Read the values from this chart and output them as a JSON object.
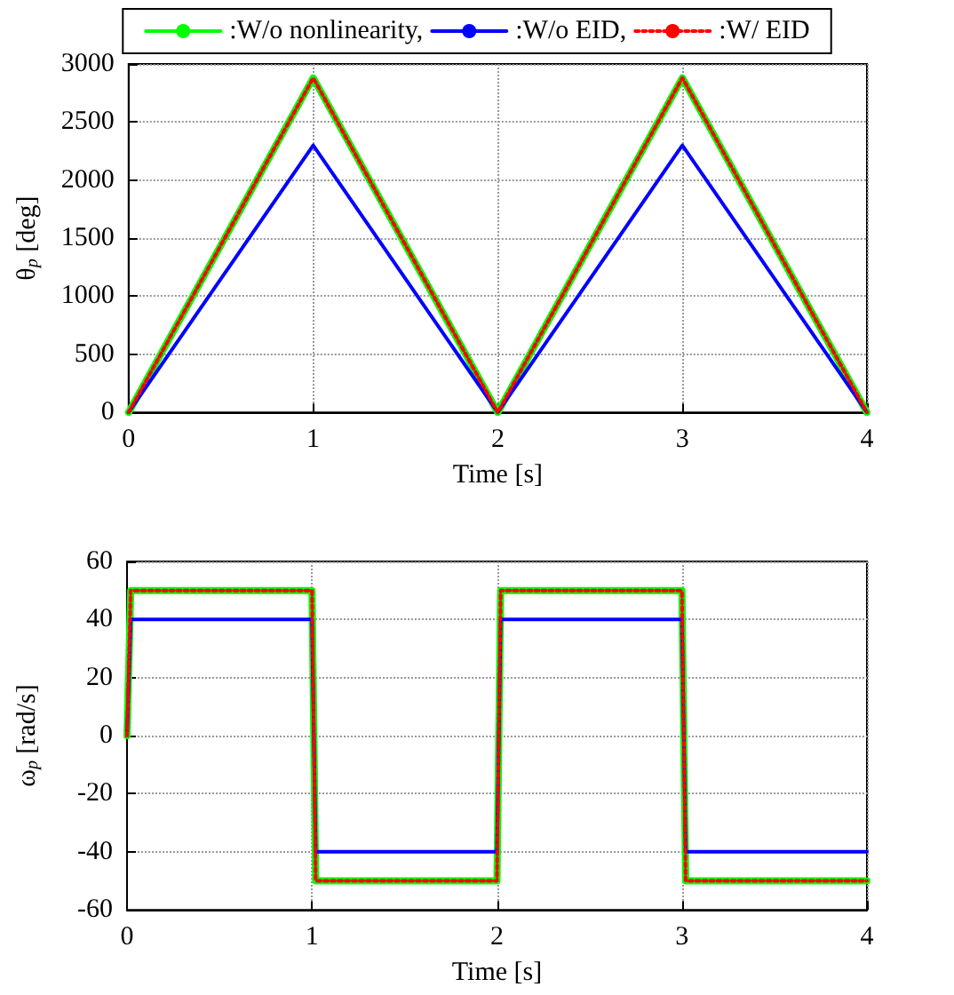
{
  "chart_data": [
    {
      "type": "line",
      "xlabel": "Time [s]",
      "ylabel": "θ$_{p}$ [deg]",
      "x": [
        0,
        1,
        2,
        3,
        4
      ],
      "xlim": [
        0,
        4
      ],
      "xticks": [
        0,
        1,
        2,
        3,
        4
      ],
      "ylim": [
        0,
        3000
      ],
      "yticks": [
        0,
        500,
        1000,
        1500,
        2000,
        2500,
        3000
      ],
      "grid": true,
      "legend": "top",
      "marker": "none",
      "series": [
        {
          "name": ":W/o nonlinearity,",
          "color": "#00ff00",
          "line_style": "solid",
          "values": [
            0,
            2880,
            0,
            2880,
            0
          ]
        },
        {
          "name": ":W/o EID,",
          "color": "#0000ff",
          "line_style": "solid",
          "values": [
            0,
            2300,
            0,
            2300,
            0
          ]
        },
        {
          "name": ":W/ EID",
          "color": "#ff0000",
          "line_style": "dotted",
          "values": [
            0,
            2880,
            0,
            2880,
            0
          ]
        }
      ]
    },
    {
      "type": "line",
      "xlabel": "Time [s]",
      "ylabel": "ω$_{p}$ [rad/s]",
      "x": [
        0,
        0.02,
        1,
        1.02,
        2,
        2.02,
        3,
        3.02,
        4
      ],
      "xlim": [
        0,
        4
      ],
      "xticks": [
        0,
        1,
        2,
        3,
        4
      ],
      "ylim": [
        -60,
        60
      ],
      "yticks": [
        -60,
        -40,
        -20,
        0,
        20,
        40,
        60
      ],
      "grid": true,
      "legend": false,
      "marker": "none",
      "series": [
        {
          "color": "#00ff00",
          "line_style": "solid",
          "values": [
            0,
            50,
            50,
            -50,
            -50,
            50,
            50,
            -50,
            -50
          ]
        },
        {
          "color": "#0000ff",
          "line_style": "solid",
          "values": [
            0,
            40,
            40,
            -40,
            -40,
            40,
            40,
            -40,
            -40
          ]
        },
        {
          "color": "#ff0000",
          "line_style": "dotted",
          "values": [
            0,
            50,
            50,
            -50,
            -50,
            50,
            50,
            -50,
            -50
          ]
        }
      ]
    }
  ]
}
